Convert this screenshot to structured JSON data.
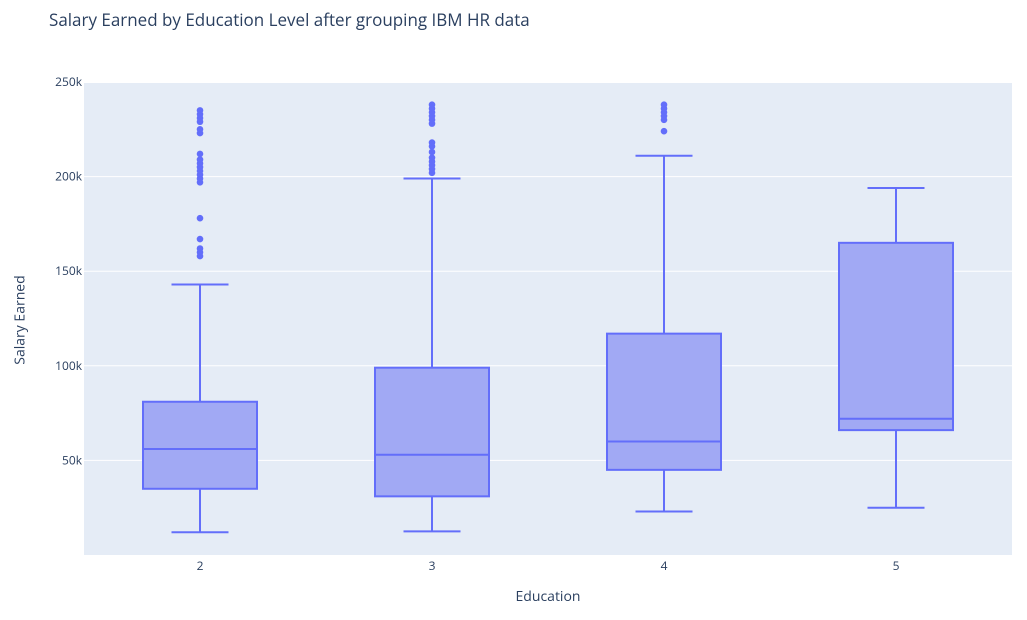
{
  "chart_data": {
    "type": "box",
    "title": "Salary Earned by Education Level after grouping IBM HR data",
    "xlabel": "Education",
    "ylabel": "Salary Earned",
    "categories": [
      "2",
      "3",
      "4",
      "5"
    ],
    "y_ticks": [
      50000,
      100000,
      150000,
      200000,
      250000
    ],
    "y_tick_labels": [
      "50k",
      "100k",
      "150k",
      "200k",
      "250k"
    ],
    "ylim": [
      0,
      252000
    ],
    "colors": {
      "box_fill": "#a1a9f4",
      "box_line": "#636efa",
      "plot_bg": "#e5ecf6",
      "grid": "#ffffff"
    },
    "boxes": [
      {
        "category": "2",
        "min": 12000,
        "q1": 35000,
        "median": 56000,
        "q3": 81000,
        "max": 143000,
        "outliers": [
          158000,
          160000,
          162000,
          167000,
          178000,
          197000,
          199000,
          201000,
          203000,
          205000,
          207000,
          209000,
          212000,
          223000,
          225000,
          229000,
          231000,
          233000,
          235000
        ]
      },
      {
        "category": "3",
        "min": 12500,
        "q1": 31000,
        "median": 53000,
        "q3": 99000,
        "max": 199000,
        "outliers": [
          202000,
          204000,
          206000,
          208000,
          210000,
          213000,
          216000,
          218000,
          228000,
          230000,
          232000,
          234000,
          236000,
          238000
        ]
      },
      {
        "category": "4",
        "min": 23000,
        "q1": 45000,
        "median": 60000,
        "q3": 117000,
        "max": 211000,
        "outliers": [
          224000,
          230000,
          232000,
          234000,
          236000,
          238000
        ]
      },
      {
        "category": "5",
        "min": 25000,
        "q1": 66000,
        "median": 72000,
        "q3": 165000,
        "max": 194000,
        "outliers": []
      }
    ]
  }
}
